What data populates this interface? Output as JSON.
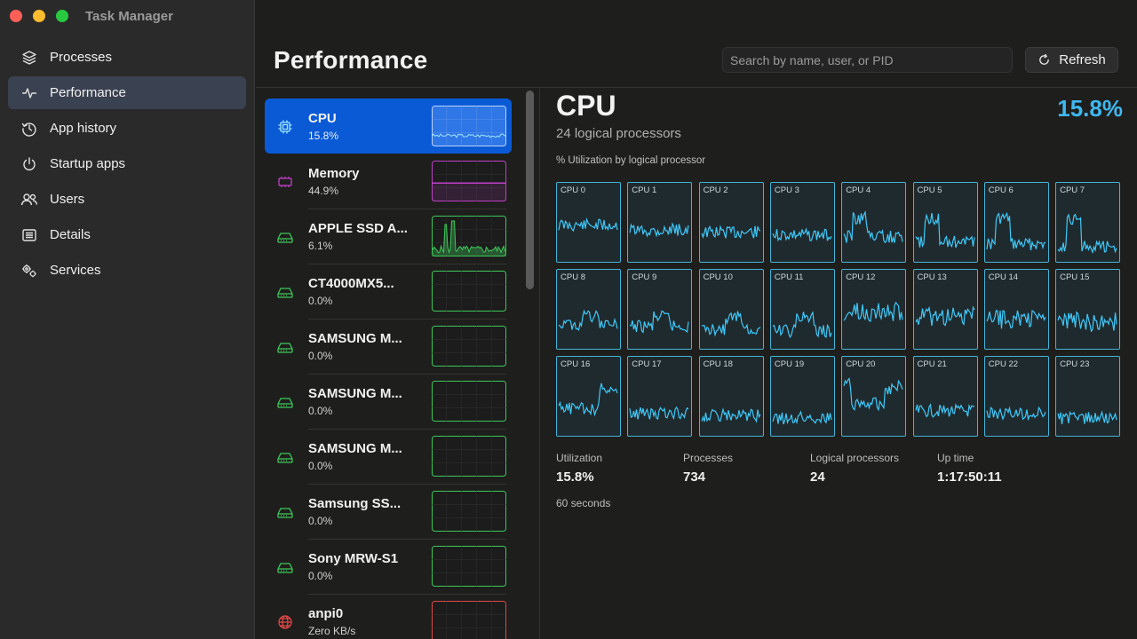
{
  "app_title": "Task Manager",
  "sidebar": {
    "items": [
      {
        "label": "Processes",
        "icon": "layers-icon",
        "active": false
      },
      {
        "label": "Performance",
        "icon": "pulse-icon",
        "active": true
      },
      {
        "label": "App history",
        "icon": "history-icon",
        "active": false
      },
      {
        "label": "Startup apps",
        "icon": "power-icon",
        "active": false
      },
      {
        "label": "Users",
        "icon": "users-icon",
        "active": false
      },
      {
        "label": "Details",
        "icon": "details-list-icon",
        "active": false
      },
      {
        "label": "Services",
        "icon": "gears-icon",
        "active": false
      }
    ]
  },
  "header": {
    "title": "Performance",
    "search_placeholder": "Search by name, user, or PID",
    "refresh_label": "Refresh"
  },
  "devices": [
    {
      "name": "CPU",
      "value": "15.8%",
      "icon": "cpu-chip-icon",
      "color": "#3fb8f0",
      "active": true
    },
    {
      "name": "Memory",
      "value": "44.9%",
      "icon": "memory-icon",
      "color": "#c040c8",
      "active": false
    },
    {
      "name": "APPLE SSD A...",
      "value": "6.1%",
      "icon": "drive-icon",
      "color": "#3ec85a",
      "active": false
    },
    {
      "name": "CT4000MX5...",
      "value": "0.0%",
      "icon": "drive-icon",
      "color": "#3ec85a",
      "active": false
    },
    {
      "name": "SAMSUNG M...",
      "value": "0.0%",
      "icon": "drive-icon",
      "color": "#3ec85a",
      "active": false
    },
    {
      "name": "SAMSUNG M...",
      "value": "0.0%",
      "icon": "drive-icon",
      "color": "#3ec85a",
      "active": false
    },
    {
      "name": "SAMSUNG M...",
      "value": "0.0%",
      "icon": "drive-icon",
      "color": "#3ec85a",
      "active": false
    },
    {
      "name": "Samsung SS...",
      "value": "0.0%",
      "icon": "drive-icon",
      "color": "#3ec85a",
      "active": false
    },
    {
      "name": "Sony MRW-S1",
      "value": "0.0%",
      "icon": "drive-icon",
      "color": "#3ec85a",
      "active": false
    },
    {
      "name": "anpi0",
      "value": "Zero KB/s",
      "icon": "network-globe-icon",
      "color": "#e04848",
      "active": false
    }
  ],
  "detail": {
    "title": "CPU",
    "utilization_big": "15.8%",
    "subtitle": "24 logical processors",
    "grid_label": "% Utilization by logical processor",
    "cores": [
      "CPU 0",
      "CPU 1",
      "CPU 2",
      "CPU 3",
      "CPU 4",
      "CPU 5",
      "CPU 6",
      "CPU 7",
      "CPU 8",
      "CPU 9",
      "CPU 10",
      "CPU 11",
      "CPU 12",
      "CPU 13",
      "CPU 14",
      "CPU 15",
      "CPU 16",
      "CPU 17",
      "CPU 18",
      "CPU 19",
      "CPU 20",
      "CPU 21",
      "CPU 22",
      "CPU 23"
    ],
    "core_level": [
      0.55,
      0.45,
      0.4,
      0.35,
      0.3,
      0.2,
      0.15,
      0.1,
      0.3,
      0.25,
      0.2,
      0.15,
      0.55,
      0.45,
      0.4,
      0.35,
      0.35,
      0.25,
      0.2,
      0.15,
      0.45,
      0.3,
      0.25,
      0.15
    ],
    "stats": [
      {
        "label": "Utilization",
        "value": "15.8%"
      },
      {
        "label": "Processes",
        "value": "734"
      },
      {
        "label": "Logical processors",
        "value": "24"
      },
      {
        "label": "Up time",
        "value": "1:17:50:11"
      }
    ],
    "window_label": "60 seconds"
  },
  "colors": {
    "accent": "#0a5ad6",
    "cpu": "#3fb8f0",
    "memory": "#c040c8",
    "disk": "#3ec85a",
    "network": "#e04848"
  }
}
